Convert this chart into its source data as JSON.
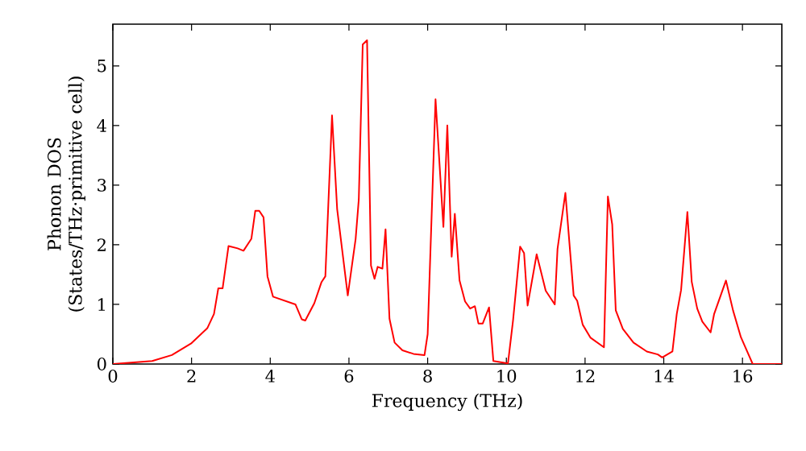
{
  "chart_data": {
    "type": "line",
    "xlabel": "Frequency (THz)",
    "ylabel": "Phonon DOS (States/THz·primitive cell)",
    "xlim": [
      0,
      17
    ],
    "ylim": [
      0,
      5.7
    ],
    "xticks": [
      0,
      2,
      4,
      6,
      8,
      10,
      12,
      14,
      16
    ],
    "yticks": [
      0,
      1,
      2,
      3,
      4,
      5
    ],
    "marker": "none",
    "line_style": "solid",
    "series": [
      {
        "color": "#ff0000",
        "x": [
          0,
          1,
          1.5,
          2,
          2.4,
          2.57,
          2.68,
          2.79,
          2.94,
          3.17,
          3.32,
          3.52,
          3.62,
          3.72,
          3.83,
          3.93,
          4.07,
          4.64,
          4.8,
          4.89,
          5.12,
          5.3,
          5.4,
          5.57,
          5.7,
          5.97,
          6.17,
          6.25,
          6.35,
          6.46,
          6.56,
          6.65,
          6.73,
          6.85,
          6.93,
          7.03,
          7.16,
          7.36,
          7.64,
          7.92,
          8.0,
          8.2,
          8.4,
          8.5,
          8.61,
          8.69,
          8.81,
          8.95,
          9.08,
          9.2,
          9.29,
          9.4,
          9.56,
          9.67,
          10.04,
          10.17,
          10.35,
          10.45,
          10.54,
          10.77,
          11.0,
          11.23,
          11.3,
          11.5,
          11.71,
          11.8,
          11.94,
          12.14,
          12.48,
          12.58,
          12.69,
          12.78,
          12.96,
          13.23,
          13.57,
          13.85,
          13.96,
          14.22,
          14.33,
          14.44,
          14.6,
          14.71,
          14.85,
          14.98,
          15.19,
          15.28,
          15.58,
          15.76,
          15.96,
          16.26,
          17
        ],
        "values": [
          0,
          0.05,
          0.15,
          0.35,
          0.6,
          0.84,
          1.27,
          1.27,
          1.98,
          1.94,
          1.9,
          2.1,
          2.57,
          2.57,
          2.46,
          1.47,
          1.13,
          1.0,
          0.75,
          0.73,
          1.02,
          1.37,
          1.47,
          4.17,
          2.6,
          1.15,
          2.1,
          2.76,
          5.36,
          5.43,
          1.65,
          1.43,
          1.63,
          1.6,
          2.26,
          0.76,
          0.36,
          0.23,
          0.17,
          0.15,
          0.5,
          4.44,
          2.3,
          4.0,
          1.8,
          2.52,
          1.4,
          1.05,
          0.93,
          0.97,
          0.68,
          0.68,
          0.95,
          0.05,
          0.01,
          0.73,
          1.97,
          1.86,
          0.98,
          1.84,
          1.23,
          1.0,
          1.93,
          2.87,
          1.15,
          1.06,
          0.66,
          0.44,
          0.28,
          2.81,
          2.34,
          0.9,
          0.59,
          0.36,
          0.21,
          0.16,
          0.11,
          0.21,
          0.84,
          1.24,
          2.55,
          1.38,
          0.93,
          0.71,
          0.53,
          0.84,
          1.4,
          0.9,
          0.45,
          0,
          0
        ]
      }
    ]
  }
}
